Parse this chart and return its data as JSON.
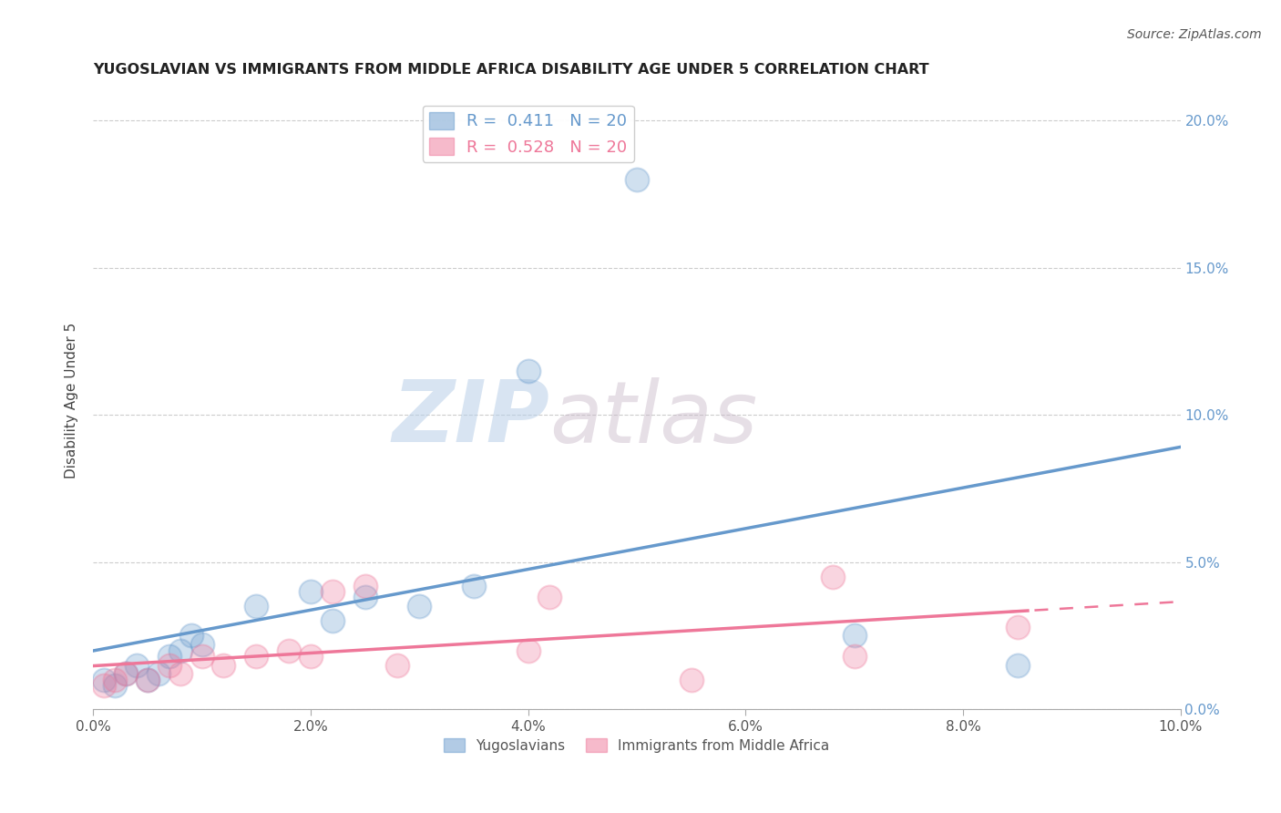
{
  "title": "YUGOSLAVIAN VS IMMIGRANTS FROM MIDDLE AFRICA DISABILITY AGE UNDER 5 CORRELATION CHART",
  "source": "Source: ZipAtlas.com",
  "ylabel": "Disability Age Under 5",
  "xlim": [
    0.0,
    0.1
  ],
  "ylim": [
    0.0,
    0.21
  ],
  "xticks": [
    0.0,
    0.02,
    0.04,
    0.06,
    0.08,
    0.1
  ],
  "yticks": [
    0.0,
    0.05,
    0.1,
    0.15,
    0.2
  ],
  "blue_r": 0.411,
  "blue_n": 20,
  "pink_r": 0.528,
  "pink_n": 20,
  "blue_color": "#6699cc",
  "pink_color": "#ee7799",
  "legend_labels": [
    "Yugoslavians",
    "Immigrants from Middle Africa"
  ],
  "blue_x": [
    0.001,
    0.002,
    0.003,
    0.004,
    0.005,
    0.006,
    0.007,
    0.008,
    0.009,
    0.01,
    0.015,
    0.02,
    0.022,
    0.025,
    0.03,
    0.035,
    0.04,
    0.05,
    0.07,
    0.085
  ],
  "blue_y": [
    0.01,
    0.008,
    0.012,
    0.015,
    0.01,
    0.012,
    0.018,
    0.02,
    0.025,
    0.022,
    0.035,
    0.04,
    0.03,
    0.038,
    0.035,
    0.042,
    0.115,
    0.18,
    0.025,
    0.015
  ],
  "pink_x": [
    0.001,
    0.002,
    0.003,
    0.005,
    0.007,
    0.008,
    0.01,
    0.012,
    0.015,
    0.018,
    0.02,
    0.022,
    0.025,
    0.028,
    0.04,
    0.042,
    0.055,
    0.068,
    0.07,
    0.085
  ],
  "pink_y": [
    0.008,
    0.01,
    0.012,
    0.01,
    0.015,
    0.012,
    0.018,
    0.015,
    0.018,
    0.02,
    0.018,
    0.04,
    0.042,
    0.015,
    0.02,
    0.038,
    0.01,
    0.045,
    0.018,
    0.028
  ],
  "watermark_zip": "ZIP",
  "watermark_atlas": "atlas",
  "background_color": "#ffffff",
  "grid_color": "#cccccc"
}
